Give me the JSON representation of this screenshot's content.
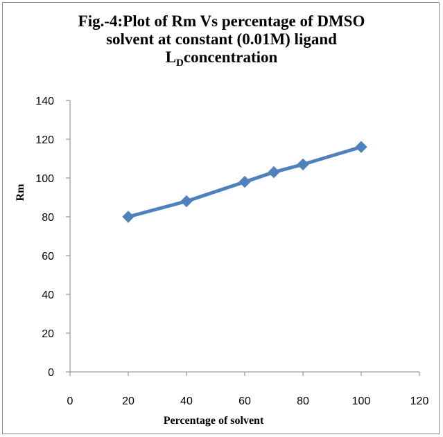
{
  "chart_data": {
    "type": "line",
    "title": {
      "line1": "Fig.-4:Plot of Rm Vs percentage of DMSO",
      "line2": "solvent at constant (0.01M) ligand",
      "line3_main": "L",
      "line3_subscript": "D",
      "line3_rest": "concentration"
    },
    "xlabel": "Percentage of solvent",
    "ylabel": "Rm",
    "xlim": [
      0,
      120
    ],
    "ylim": [
      0,
      140
    ],
    "xticks": [
      0,
      20,
      40,
      60,
      80,
      100,
      120
    ],
    "yticks": [
      0,
      20,
      40,
      60,
      80,
      100,
      120,
      140
    ],
    "grid": false,
    "legend": "none",
    "series": [
      {
        "color": "#4f81bd",
        "marker": "diamond",
        "x": [
          20,
          40,
          60,
          70,
          80,
          100
        ],
        "y": [
          80,
          88,
          98,
          103,
          107,
          116
        ]
      }
    ]
  }
}
